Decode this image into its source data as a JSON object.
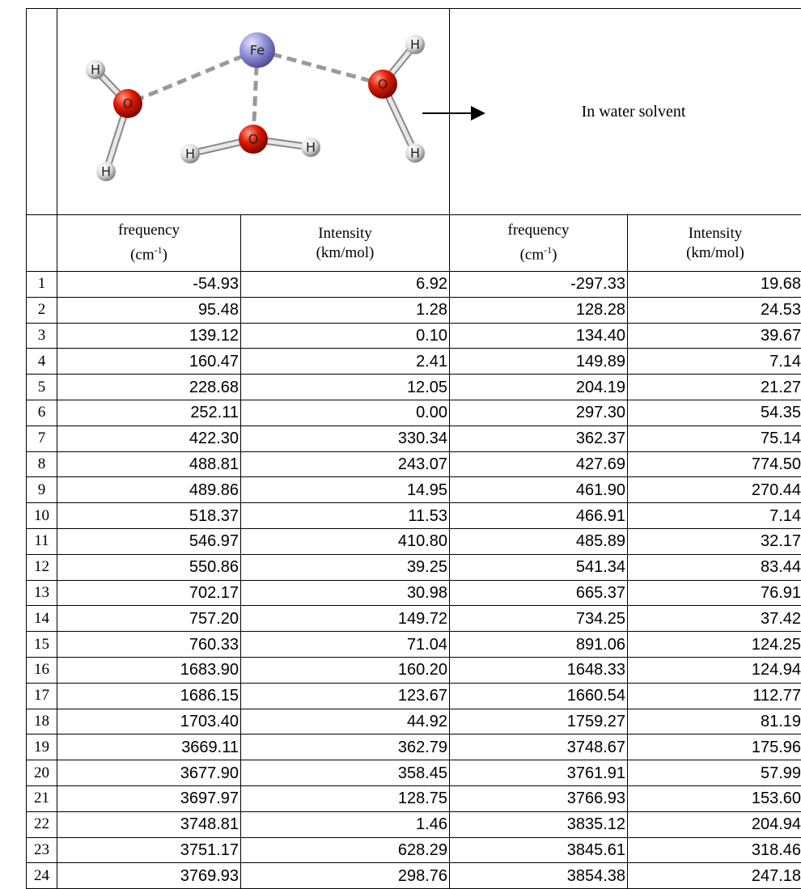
{
  "molecule": {
    "atoms": [
      "Fe",
      "O",
      "O",
      "O",
      "H",
      "H",
      "H",
      "H",
      "H",
      "H"
    ]
  },
  "header": {
    "caption": "In water solvent"
  },
  "table": {
    "columns": [
      {
        "label": "frequency",
        "unit": [
          "(cm",
          "-1",
          ")"
        ]
      },
      {
        "label": "Intensity",
        "unit": [
          "(km/mol)"
        ]
      },
      {
        "label": "frequency",
        "unit": [
          "(cm",
          "-1",
          ")"
        ]
      },
      {
        "label": "Intensity",
        "unit": [
          "(km/mol)"
        ]
      }
    ],
    "rows": [
      [
        "1",
        "-54.93",
        "6.92",
        "-297.33",
        "19.68"
      ],
      [
        "2",
        "95.48",
        "1.28",
        "128.28",
        "24.53"
      ],
      [
        "3",
        "139.12",
        "0.10",
        "134.40",
        "39.67"
      ],
      [
        "4",
        "160.47",
        "2.41",
        "149.89",
        "7.14"
      ],
      [
        "5",
        "228.68",
        "12.05",
        "204.19",
        "21.27"
      ],
      [
        "6",
        "252.11",
        "0.00",
        "297.30",
        "54.35"
      ],
      [
        "7",
        "422.30",
        "330.34",
        "362.37",
        "75.14"
      ],
      [
        "8",
        "488.81",
        "243.07",
        "427.69",
        "774.50"
      ],
      [
        "9",
        "489.86",
        "14.95",
        "461.90",
        "270.44"
      ],
      [
        "10",
        "518.37",
        "11.53",
        "466.91",
        "7.14"
      ],
      [
        "11",
        "546.97",
        "410.80",
        "485.89",
        "32.17"
      ],
      [
        "12",
        "550.86",
        "39.25",
        "541.34",
        "83.44"
      ],
      [
        "13",
        "702.17",
        "30.98",
        "665.37",
        "76.91"
      ],
      [
        "14",
        "757.20",
        "149.72",
        "734.25",
        "37.42"
      ],
      [
        "15",
        "760.33",
        "71.04",
        "891.06",
        "124.25"
      ],
      [
        "16",
        "1683.90",
        "160.20",
        "1648.33",
        "124.94"
      ],
      [
        "17",
        "1686.15",
        "123.67",
        "1660.54",
        "112.77"
      ],
      [
        "18",
        "1703.40",
        "44.92",
        "1759.27",
        "81.19"
      ],
      [
        "19",
        "3669.11",
        "362.79",
        "3748.67",
        "175.96"
      ],
      [
        "20",
        "3677.90",
        "358.45",
        "3761.91",
        "57.99"
      ],
      [
        "21",
        "3697.97",
        "128.75",
        "3766.93",
        "153.60"
      ],
      [
        "22",
        "3748.81",
        "1.46",
        "3835.12",
        "204.94"
      ],
      [
        "23",
        "3751.17",
        "628.29",
        "3845.61",
        "318.46"
      ],
      [
        "24",
        "3769.93",
        "298.76",
        "3854.38",
        "247.18"
      ]
    ]
  }
}
